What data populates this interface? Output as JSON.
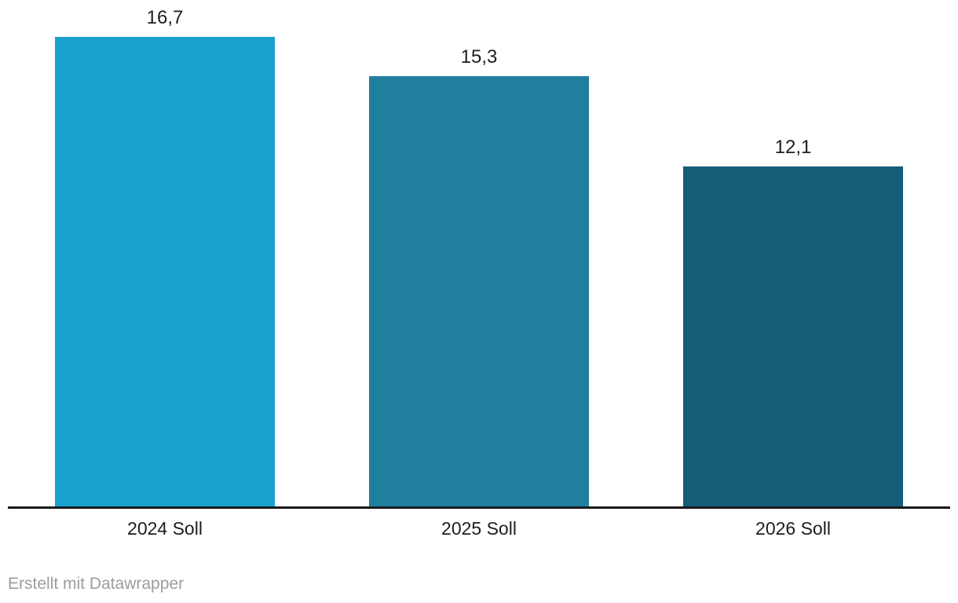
{
  "chart_data": {
    "type": "bar",
    "title": "",
    "xlabel": "",
    "ylabel": "",
    "categories": [
      "2024 Soll",
      "2025 Soll",
      "2026 Soll"
    ],
    "values": [
      16.7,
      15.3,
      12.1
    ],
    "value_labels": [
      "16,7",
      "15,3",
      "12,1"
    ],
    "bar_colors": [
      "#1aa0cd",
      "#207f9e",
      "#155e77"
    ],
    "ylim": [
      0,
      16.7
    ],
    "grid": false,
    "legend": "none",
    "axis_line_color": "#1a1a1c",
    "label_color": "#1d1d1d"
  },
  "footer": {
    "attribution": "Erstellt mit Datawrapper"
  }
}
